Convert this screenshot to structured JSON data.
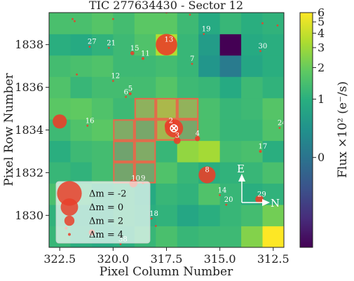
{
  "chart_data": {
    "type": "heatmap",
    "title": "TIC 277634430 - Sector 12",
    "xlabel": "Pixel Column Number",
    "ylabel": "Pixel Row Number",
    "colorbar_label": "Flux ×10² (e⁻/s)",
    "x_ticks": [
      "322.5",
      "320.0",
      "317.5",
      "315.0",
      "312.5"
    ],
    "y_ticks": [
      "1838",
      "1836",
      "1834",
      "1832",
      "1830"
    ],
    "colorbar_ticks": [
      "0",
      "1",
      "2",
      "3",
      "4",
      "5",
      "6"
    ],
    "colormap": "viridis",
    "grid": {
      "cols": 11,
      "rows": 11,
      "col_start": 323.0,
      "row_start": 1828.5
    },
    "pixels": [
      [
        1.2,
        1.0,
        0.9,
        1.0,
        1.2,
        1.5,
        1.2,
        1.3,
        1.3,
        2.5,
        6.0
      ],
      [
        1.1,
        0.9,
        0.9,
        1.1,
        1.0,
        1.1,
        0.8,
        1.0,
        1.2,
        1.4,
        2.2
      ],
      [
        1.5,
        1.2,
        1.0,
        1.1,
        0.9,
        1.2,
        1.1,
        1.6,
        1.2,
        1.0,
        1.1
      ],
      [
        1.2,
        1.1,
        1.4,
        1.3,
        1.3,
        1.6,
        1.2,
        1.0,
        1.1,
        1.2,
        1.5
      ],
      [
        1.0,
        1.3,
        1.4,
        1.2,
        1.6,
        1.2,
        2.8,
        3.2,
        1.4,
        1.5,
        1.0
      ],
      [
        1.3,
        1.6,
        1.8,
        1.6,
        1.4,
        2.6,
        1.4,
        1.5,
        1.2,
        1.2,
        1.6
      ],
      [
        1.8,
        1.9,
        1.6,
        1.3,
        2.0,
        2.8,
        2.1,
        1.5,
        1.2,
        1.3,
        1.7
      ],
      [
        1.6,
        1.2,
        1.4,
        1.4,
        1.4,
        1.7,
        1.3,
        1.2,
        0.9,
        1.3,
        1.1
      ],
      [
        1.4,
        1.5,
        1.6,
        1.3,
        1.3,
        1.4,
        1.2,
        0.5,
        0.1,
        0.8,
        1.0
      ],
      [
        1.0,
        0.9,
        1.1,
        1.3,
        1.6,
        3.5,
        1.2,
        0.6,
        -2.0,
        0.9,
        1.0
      ],
      [
        1.5,
        1.5,
        1.7,
        1.4,
        1.8,
        1.8,
        1.3,
        0.9,
        1.2,
        1.0,
        1.1
      ]
    ],
    "aperture": [
      [
        3,
        3
      ],
      [
        3,
        4
      ],
      [
        4,
        3
      ],
      [
        4,
        4
      ],
      [
        5,
        3
      ],
      [
        5,
        4
      ],
      [
        5,
        5
      ],
      [
        5,
        6
      ],
      [
        6,
        4
      ],
      [
        6,
        5
      ],
      [
        6,
        6
      ]
    ],
    "stars": [
      {
        "label": "",
        "x": 317.15,
        "y": 1834.08,
        "dm": 0
      },
      {
        "label": "2",
        "x": 317.3,
        "y": 1834.2,
        "dm": 1.5
      },
      {
        "label": "3",
        "x": 317.0,
        "y": 1833.5,
        "dm": 2.8
      },
      {
        "label": "4",
        "x": 316.05,
        "y": 1833.6,
        "dm": 3.2
      },
      {
        "label": "5",
        "x": 319.2,
        "y": 1835.7,
        "dm": 3.8
      },
      {
        "label": "6",
        "x": 319.4,
        "y": 1835.55,
        "dm": 4
      },
      {
        "label": "7",
        "x": 316.3,
        "y": 1837.1,
        "dm": 4
      },
      {
        "label": "8",
        "x": 315.6,
        "y": 1831.9,
        "dm": 0.3
      },
      {
        "label": "9",
        "x": 318.6,
        "y": 1831.5,
        "dm": 4
      },
      {
        "label": "10",
        "x": 319.05,
        "y": 1831.5,
        "dm": 2.5
      },
      {
        "label": "11",
        "x": 318.6,
        "y": 1837.35,
        "dm": 3.8
      },
      {
        "label": "12",
        "x": 320.0,
        "y": 1836.3,
        "dm": 4
      },
      {
        "label": "13",
        "x": 317.5,
        "y": 1838.0,
        "dm": -0.8
      },
      {
        "label": "14",
        "x": 315.0,
        "y": 1830.95,
        "dm": 4
      },
      {
        "label": "15",
        "x": 319.1,
        "y": 1837.6,
        "dm": 3.5
      },
      {
        "label": "16",
        "x": 321.2,
        "y": 1834.2,
        "dm": 4
      },
      {
        "label": "17",
        "x": 313.1,
        "y": 1833.0,
        "dm": 3.8
      },
      {
        "label": "18",
        "x": 318.2,
        "y": 1829.85,
        "dm": 4
      },
      {
        "label": "19",
        "x": 315.75,
        "y": 1838.5,
        "dm": 4
      },
      {
        "label": "20",
        "x": 314.7,
        "y": 1830.5,
        "dm": 4
      },
      {
        "label": "21",
        "x": 320.2,
        "y": 1837.85,
        "dm": 4
      },
      {
        "label": "24",
        "x": 312.2,
        "y": 1834.1,
        "dm": 4
      },
      {
        "label": "27",
        "x": 321.1,
        "y": 1837.9,
        "dm": 4
      },
      {
        "label": "29",
        "x": 313.15,
        "y": 1830.75,
        "dm": 2.5
      },
      {
        "label": "30",
        "x": 313.1,
        "y": 1837.7,
        "dm": 4
      },
      {
        "label": "38",
        "x": 319.65,
        "y": 1828.65,
        "dm": 4
      },
      {
        "label": "",
        "x": 322.5,
        "y": 1834.4,
        "dm": 1
      },
      {
        "label": "",
        "x": 322.2,
        "y": 1831.5,
        "dm": 3.8
      },
      {
        "label": "",
        "x": 322.2,
        "y": 1829.4,
        "dm": 3.8
      },
      {
        "label": "",
        "x": 321.0,
        "y": 1829.2,
        "dm": 3
      },
      {
        "label": "",
        "x": 321.7,
        "y": 1836.6,
        "dm": 4
      },
      {
        "label": "",
        "x": 321.8,
        "y": 1839.1,
        "dm": 4
      },
      {
        "label": "",
        "x": 321.9,
        "y": 1839.2,
        "dm": 4
      },
      {
        "label": "",
        "x": 320.0,
        "y": 1839.2,
        "dm": 4
      },
      {
        "label": "",
        "x": 317.5,
        "y": 1839.5,
        "dm": 4
      },
      {
        "label": "",
        "x": 316.4,
        "y": 1839.4,
        "dm": 4
      },
      {
        "label": "",
        "x": 313.0,
        "y": 1839.0,
        "dm": 4
      },
      {
        "label": "",
        "x": 312.3,
        "y": 1838.9,
        "dm": 4
      },
      {
        "label": "",
        "x": 318.0,
        "y": 1829.5,
        "dm": 4
      }
    ],
    "legend": {
      "entries": [
        {
          "label": "Δm = -2",
          "dm": -2
        },
        {
          "label": "Δm = 0",
          "dm": 0
        },
        {
          "label": "Δm = 2",
          "dm": 2
        },
        {
          "label": "Δm = 4",
          "dm": 4
        }
      ],
      "placement": "lower-left"
    },
    "compass": {
      "east": "E",
      "north": "N"
    },
    "colors": {
      "star": "#e8402a",
      "aperture": "#e8684a",
      "target_marker": "#ffffff"
    }
  }
}
